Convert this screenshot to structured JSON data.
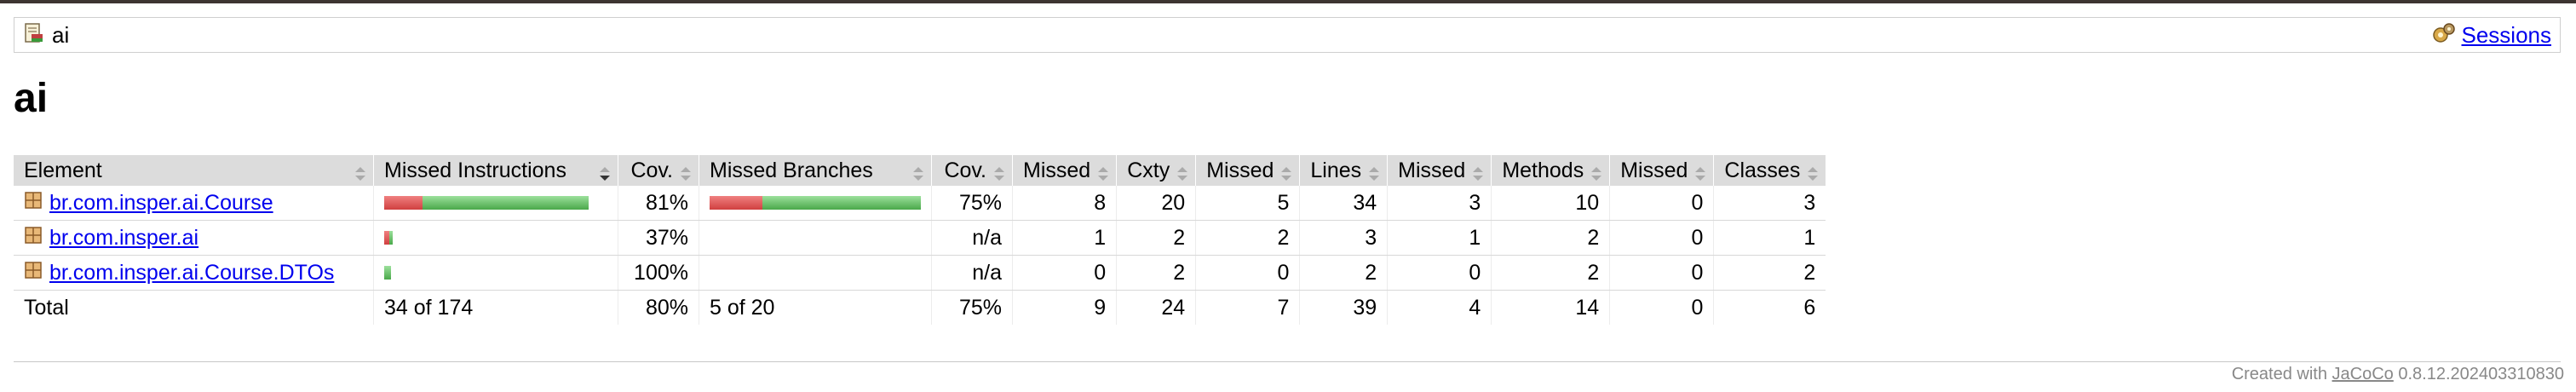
{
  "breadcrumb": {
    "title": "ai",
    "sessions_link": "Sessions"
  },
  "page_title": "ai",
  "table": {
    "headers": [
      "Element",
      "Missed Instructions",
      "Cov.",
      "Missed Branches",
      "Cov.",
      "Missed",
      "Cxty",
      "Missed",
      "Lines",
      "Missed",
      "Methods",
      "Missed",
      "Classes"
    ],
    "rows": [
      {
        "element": "br.com.insper.ai.Course",
        "instr_cov": "81%",
        "instr_missed_fraction": 0.19,
        "branch_cov": "75%",
        "branch_missed_fraction": 0.25,
        "missed_cxty": "8",
        "cxty": "20",
        "missed_lines": "5",
        "lines": "34",
        "missed_methods": "3",
        "methods": "10",
        "missed_classes": "0",
        "classes": "3"
      },
      {
        "element": "br.com.insper.ai",
        "instr_cov": "37%",
        "instr_missed_fraction": 0.63,
        "branch_cov": "n/a",
        "missed_cxty": "1",
        "cxty": "2",
        "missed_lines": "2",
        "lines": "3",
        "missed_methods": "1",
        "methods": "2",
        "missed_classes": "0",
        "classes": "1"
      },
      {
        "element": "br.com.insper.ai.Course.DTOs",
        "instr_cov": "100%",
        "instr_missed_fraction": 0.0,
        "branch_cov": "n/a",
        "missed_cxty": "0",
        "cxty": "2",
        "missed_lines": "0",
        "lines": "2",
        "missed_methods": "0",
        "methods": "2",
        "missed_classes": "0",
        "classes": "2"
      }
    ],
    "total": {
      "label": "Total",
      "instr": "34 of 174",
      "instr_cov": "80%",
      "branch": "5 of 20",
      "branch_cov": "75%",
      "missed_cxty": "9",
      "cxty": "24",
      "missed_lines": "7",
      "lines": "39",
      "missed_methods": "4",
      "methods": "14",
      "missed_classes": "0",
      "classes": "6"
    }
  },
  "footer": {
    "prefix": "Created with",
    "link": "JaCoCo",
    "version": "0.8.12.202403310830"
  },
  "colors": {
    "missed": "#d04040",
    "covered": "#4aa84a",
    "header_bg": "#dcdcdc",
    "link": "#0000ee"
  },
  "icons": {
    "report": "report-icon",
    "session": "session-icon",
    "package": "package-icon",
    "sort": "sort-icon",
    "sort_desc": "sort-desc-icon"
  }
}
